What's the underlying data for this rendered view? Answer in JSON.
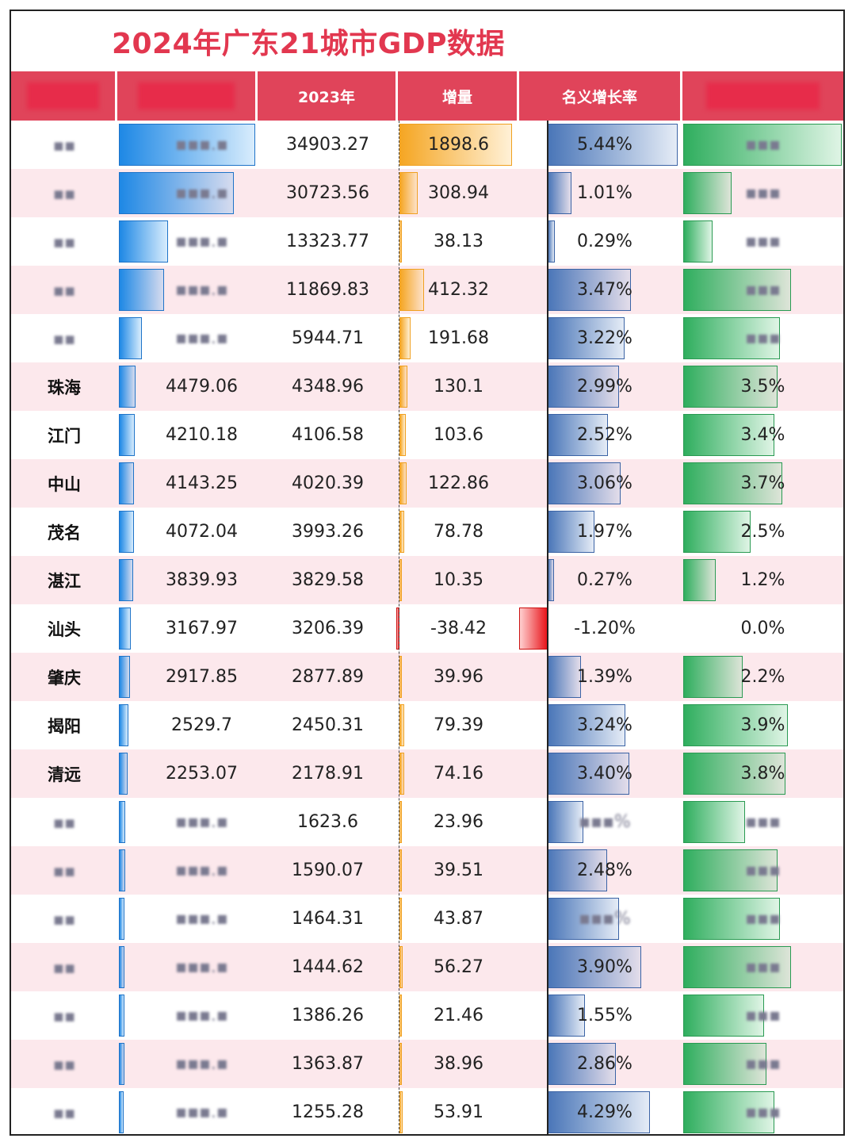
{
  "title": "2024年广东21城市GDP数据",
  "header": [
    "",
    "",
    "2023年",
    "增量",
    "名义增长率",
    ""
  ],
  "colors": {
    "title": "#e2374f",
    "header_bg": "#e0445a",
    "row_pink": "#fce8ec",
    "gdp2024_bar": "#1e88e5",
    "increment_bar": "#f5a623",
    "increment_negative_bar": "#e8151b",
    "growth_bar": "#4a76b8",
    "real_growth_bar": "#2fae5e"
  },
  "chart_data": {
    "type": "table",
    "title": "2024年广东21城市GDP数据",
    "columns": [
      "",
      "",
      "2023年",
      "增量",
      "名义增长率",
      ""
    ],
    "rows": [
      {
        "city": "",
        "gdp2024": "",
        "gdp2024_value": 36801.87,
        "gdp2023": "34903.27",
        "increment": "1898.6",
        "increment_value": 1898.6,
        "nominal_growth": "5.44%",
        "nominal_growth_value": 5.44,
        "real_growth": "",
        "real_growth_value": 5.9
      },
      {
        "city": "",
        "gdp2024": "",
        "gdp2024_value": 31032.5,
        "gdp2023": "30723.56",
        "increment": "308.94",
        "increment_value": 308.94,
        "nominal_growth": "1.01%",
        "nominal_growth_value": 1.01,
        "real_growth": "",
        "real_growth_value": 1.8
      },
      {
        "city": "",
        "gdp2024": "",
        "gdp2024_value": 13361.9,
        "gdp2023": "13323.77",
        "increment": "38.13",
        "increment_value": 38.13,
        "nominal_growth": "0.29%",
        "nominal_growth_value": 0.29,
        "real_growth": "",
        "real_growth_value": 1.1
      },
      {
        "city": "",
        "gdp2024": "",
        "gdp2024_value": 12282.15,
        "gdp2023": "11869.83",
        "increment": "412.32",
        "increment_value": 412.32,
        "nominal_growth": "3.47%",
        "nominal_growth_value": 3.47,
        "real_growth": "",
        "real_growth_value": 4.0
      },
      {
        "city": "",
        "gdp2024": "",
        "gdp2024_value": 6136.39,
        "gdp2023": "5944.71",
        "increment": "191.68",
        "increment_value": 191.68,
        "nominal_growth": "3.22%",
        "nominal_growth_value": 3.22,
        "real_growth": "",
        "real_growth_value": 3.6
      },
      {
        "city": "珠海",
        "gdp2024": "4479.06",
        "gdp2024_value": 4479.06,
        "gdp2023": "4348.96",
        "increment": "130.1",
        "increment_value": 130.1,
        "nominal_growth": "2.99%",
        "nominal_growth_value": 2.99,
        "real_growth": "3.5%",
        "real_growth_value": 3.5
      },
      {
        "city": "江门",
        "gdp2024": "4210.18",
        "gdp2024_value": 4210.18,
        "gdp2023": "4106.58",
        "increment": "103.6",
        "increment_value": 103.6,
        "nominal_growth": "2.52%",
        "nominal_growth_value": 2.52,
        "real_growth": "3.4%",
        "real_growth_value": 3.4
      },
      {
        "city": "中山",
        "gdp2024": "4143.25",
        "gdp2024_value": 4143.25,
        "gdp2023": "4020.39",
        "increment": "122.86",
        "increment_value": 122.86,
        "nominal_growth": "3.06%",
        "nominal_growth_value": 3.06,
        "real_growth": "3.7%",
        "real_growth_value": 3.7
      },
      {
        "city": "茂名",
        "gdp2024": "4072.04",
        "gdp2024_value": 4072.04,
        "gdp2023": "3993.26",
        "increment": "78.78",
        "increment_value": 78.78,
        "nominal_growth": "1.97%",
        "nominal_growth_value": 1.97,
        "real_growth": "2.5%",
        "real_growth_value": 2.5
      },
      {
        "city": "湛江",
        "gdp2024": "3839.93",
        "gdp2024_value": 3839.93,
        "gdp2023": "3829.58",
        "increment": "10.35",
        "increment_value": 10.35,
        "nominal_growth": "0.27%",
        "nominal_growth_value": 0.27,
        "real_growth": "1.2%",
        "real_growth_value": 1.2
      },
      {
        "city": "汕头",
        "gdp2024": "3167.97",
        "gdp2024_value": 3167.97,
        "gdp2023": "3206.39",
        "increment": "-38.42",
        "increment_value": -38.42,
        "nominal_growth": "-1.20%",
        "nominal_growth_value": -1.2,
        "real_growth": "0.0%",
        "real_growth_value": 0.0
      },
      {
        "city": "肇庆",
        "gdp2024": "2917.85",
        "gdp2024_value": 2917.85,
        "gdp2023": "2877.89",
        "increment": "39.96",
        "increment_value": 39.96,
        "nominal_growth": "1.39%",
        "nominal_growth_value": 1.39,
        "real_growth": "2.2%",
        "real_growth_value": 2.2
      },
      {
        "city": "揭阳",
        "gdp2024": "2529.7",
        "gdp2024_value": 2529.7,
        "gdp2023": "2450.31",
        "increment": "79.39",
        "increment_value": 79.39,
        "nominal_growth": "3.24%",
        "nominal_growth_value": 3.24,
        "real_growth": "3.9%",
        "real_growth_value": 3.9
      },
      {
        "city": "清远",
        "gdp2024": "2253.07",
        "gdp2024_value": 2253.07,
        "gdp2023": "2178.91",
        "increment": "74.16",
        "increment_value": 74.16,
        "nominal_growth": "3.40%",
        "nominal_growth_value": 3.4,
        "real_growth": "3.8%",
        "real_growth_value": 3.8
      },
      {
        "city": "",
        "gdp2024": "",
        "gdp2024_value": 1647.56,
        "gdp2023": "1623.6",
        "increment": "23.96",
        "increment_value": 23.96,
        "nominal_growth": "",
        "nominal_growth_value": 1.48,
        "real_growth": "",
        "real_growth_value": 2.3
      },
      {
        "city": "",
        "gdp2024": "",
        "gdp2024_value": 1629.58,
        "gdp2023": "1590.07",
        "increment": "39.51",
        "increment_value": 39.51,
        "nominal_growth": "2.48%",
        "nominal_growth_value": 2.48,
        "real_growth": "",
        "real_growth_value": 3.5
      },
      {
        "city": "",
        "gdp2024": "",
        "gdp2024_value": 1508.18,
        "gdp2023": "1464.31",
        "increment": "43.87",
        "increment_value": 43.87,
        "nominal_growth": "",
        "nominal_growth_value": 3.0,
        "real_growth": "",
        "real_growth_value": 3.6
      },
      {
        "city": "",
        "gdp2024": "",
        "gdp2024_value": 1500.89,
        "gdp2023": "1444.62",
        "increment": "56.27",
        "increment_value": 56.27,
        "nominal_growth": "3.90%",
        "nominal_growth_value": 3.9,
        "real_growth": "",
        "real_growth_value": 4.0
      },
      {
        "city": "",
        "gdp2024": "",
        "gdp2024_value": 1407.72,
        "gdp2023": "1386.26",
        "increment": "21.46",
        "increment_value": 21.46,
        "nominal_growth": "1.55%",
        "nominal_growth_value": 1.55,
        "real_growth": "",
        "real_growth_value": 3.0
      },
      {
        "city": "",
        "gdp2024": "",
        "gdp2024_value": 1402.83,
        "gdp2023": "1363.87",
        "increment": "38.96",
        "increment_value": 38.96,
        "nominal_growth": "2.86%",
        "nominal_growth_value": 2.86,
        "real_growth": "",
        "real_growth_value": 3.1
      },
      {
        "city": "",
        "gdp2024": "",
        "gdp2024_value": 1309.19,
        "gdp2023": "1255.28",
        "increment": "53.91",
        "increment_value": 53.91,
        "nominal_growth": "4.29%",
        "nominal_growth_value": 4.29,
        "real_growth": "",
        "real_growth_value": 3.4
      }
    ]
  }
}
